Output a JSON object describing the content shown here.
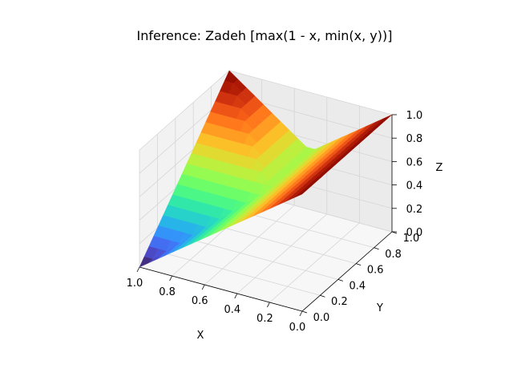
{
  "chart_data": {
    "type": "surface",
    "title": "Inference: Zadeh [max(1 - x, min(x, y))]",
    "xlabel": "X",
    "ylabel": "Y",
    "zlabel": "Z",
    "xlim": [
      0,
      1
    ],
    "ylim": [
      0,
      1
    ],
    "zlim": [
      0,
      1
    ],
    "x_ticks": [
      "0.0",
      "0.2",
      "0.4",
      "0.6",
      "0.8",
      "1.0"
    ],
    "y_ticks": [
      "0.0",
      "0.2",
      "0.4",
      "0.6",
      "0.8",
      "1.0"
    ],
    "z_ticks": [
      "0.0",
      "0.2",
      "0.4",
      "0.6",
      "0.8",
      "1.0"
    ],
    "grid": true,
    "colormap": "turbo",
    "function": "z = max(1 - x, min(x, y))",
    "grid_points": [
      0,
      0.0526,
      0.1053,
      0.1579,
      0.2105,
      0.2632,
      0.3158,
      0.3684,
      0.4211,
      0.4737,
      0.5263,
      0.5789,
      0.6316,
      0.6842,
      0.7368,
      0.7895,
      0.8421,
      0.8947,
      0.9474,
      1.0
    ]
  }
}
